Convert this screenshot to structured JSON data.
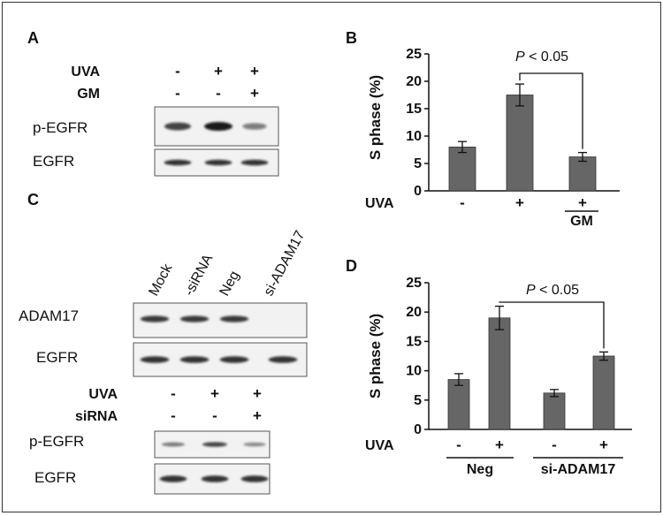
{
  "panels": {
    "A": {
      "letter": "A",
      "rows": [
        {
          "label": "UVA",
          "signs": [
            "-",
            "+",
            "+"
          ]
        },
        {
          "label": "GM",
          "signs": [
            "-",
            "-",
            "+"
          ]
        }
      ],
      "blots": [
        {
          "label": "p-EGFR",
          "intensity": [
            0.75,
            1.0,
            0.4
          ]
        },
        {
          "label": "EGFR",
          "intensity": [
            0.85,
            0.85,
            0.85
          ]
        }
      ]
    },
    "C": {
      "letter": "C",
      "lanes": [
        "Mock",
        "-siRNA",
        "Neg",
        "si-ADAM17"
      ],
      "blots_top": [
        {
          "label": "ADAM17",
          "intensity": [
            0.8,
            0.8,
            0.8,
            0
          ]
        },
        {
          "label": "EGFR",
          "intensity": [
            0.85,
            0.85,
            0.85,
            0.85
          ]
        }
      ],
      "rows": [
        {
          "label": "UVA",
          "signs": [
            "-",
            "+",
            "+"
          ]
        },
        {
          "label": "siRNA",
          "signs": [
            "-",
            "-",
            "+"
          ]
        }
      ],
      "blots_bottom": [
        {
          "label": "p-EGFR",
          "intensity": [
            0.45,
            0.75,
            0.35
          ]
        },
        {
          "label": "EGFR",
          "intensity": [
            0.85,
            0.85,
            0.85
          ]
        }
      ]
    },
    "B": {
      "letter": "B",
      "ylabel": "S phase (%)",
      "pvalue": {
        "p": "P",
        "rest": " < 0.05"
      },
      "row_label": "UVA",
      "x_signs": [
        "-",
        "+",
        "+"
      ],
      "sub_label": "GM"
    },
    "D": {
      "letter": "D",
      "ylabel": "S phase (%)",
      "pvalue": {
        "p": "P",
        "rest": " < 0.05"
      },
      "row_label": "UVA",
      "x_signs": [
        "-",
        "+",
        "-",
        "+"
      ],
      "groups": [
        "Neg",
        "si-ADAM17"
      ]
    }
  },
  "chart_data": [
    {
      "type": "bar",
      "panel": "B",
      "categories": [
        "UVA -",
        "UVA +",
        "UVA + / GM +"
      ],
      "values": [
        8.0,
        17.5,
        6.2
      ],
      "errors": [
        1.0,
        2.0,
        0.8
      ],
      "ylabel": "S phase (%)",
      "ylim": [
        0,
        25
      ],
      "yticks": [
        0,
        5,
        10,
        15,
        20,
        25
      ],
      "bar_color": "#666666",
      "annotation": "P < 0.05",
      "annotation_between": [
        1,
        2
      ]
    },
    {
      "type": "bar",
      "panel": "D",
      "categories": [
        "Neg UVA -",
        "Neg UVA +",
        "si-ADAM17 UVA -",
        "si-ADAM17 UVA +"
      ],
      "values": [
        8.5,
        19.0,
        6.2,
        12.5
      ],
      "errors": [
        1.0,
        2.0,
        0.6,
        0.7
      ],
      "ylabel": "S phase (%)",
      "ylim": [
        0,
        25
      ],
      "yticks": [
        0,
        5,
        10,
        15,
        20,
        25
      ],
      "bar_color": "#666666",
      "annotation": "P < 0.05",
      "annotation_between": [
        1,
        3
      ]
    }
  ]
}
